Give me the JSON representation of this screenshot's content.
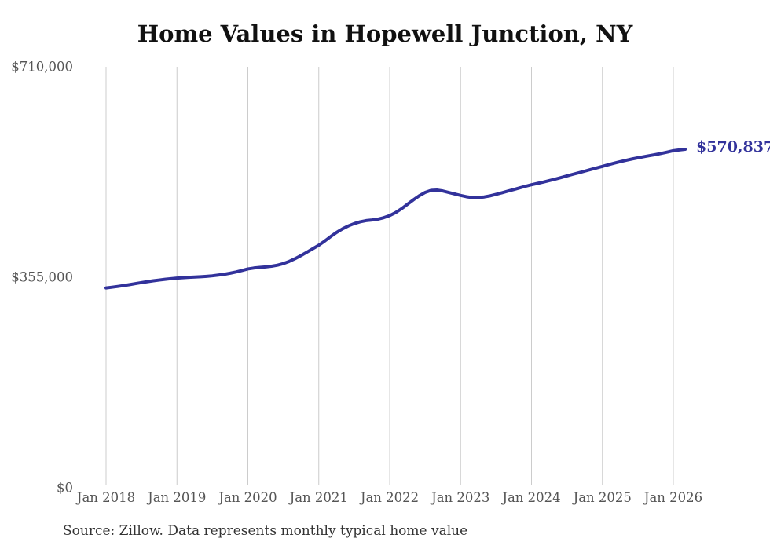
{
  "chart": {
    "title": "Home Values in Hopewell Junction, NY",
    "source_note": "Source: Zillow. Data represents monthly typical home value"
  },
  "colors": {
    "line": "#32329B",
    "end_label": "#32329B",
    "gridline": "#CCCCCC",
    "axis_text": "#555555",
    "title_text": "#111111",
    "source_text": "#333333",
    "background": "#FFFFFF"
  },
  "chart_data": {
    "type": "line",
    "title": "Home Values in Hopewell Junction, NY",
    "series_name": "Monthly typical home value (USD)",
    "frequency": "monthly",
    "start_month": "Jan 2018",
    "end_month": "Mar 2026",
    "x_ticks": [
      "Jan 2018",
      "Jan 2019",
      "Jan 2020",
      "Jan 2021",
      "Jan 2022",
      "Jan 2023",
      "Jan 2024",
      "Jan 2025",
      "Jan 2026"
    ],
    "months_per_tick": 12,
    "y_ticks": [
      {
        "label": "$0",
        "value": 0
      },
      {
        "label": "$355,000",
        "value": 355000
      },
      {
        "label": "$710,000",
        "value": 710000
      }
    ],
    "ylim": [
      0,
      710000
    ],
    "grid": "vertical-only",
    "legend": "none",
    "end_annotation": {
      "label": "$570,837",
      "value": 570837
    },
    "values": [
      337000,
      338200,
      339500,
      341000,
      342600,
      344300,
      346000,
      347600,
      349000,
      350300,
      351500,
      352600,
      353500,
      354200,
      354800,
      355300,
      355800,
      356500,
      357400,
      358600,
      360000,
      361800,
      363900,
      366300,
      369000,
      370500,
      371600,
      372400,
      373500,
      375300,
      378000,
      381700,
      386300,
      391600,
      397300,
      403200,
      409000,
      416000,
      423500,
      430500,
      436500,
      441500,
      445500,
      448500,
      450500,
      451500,
      453000,
      455500,
      459000,
      464000,
      470500,
      478000,
      485500,
      492500,
      498000,
      501500,
      502000,
      500500,
      498000,
      495500,
      493000,
      490800,
      489500,
      489500,
      490500,
      492300,
      494800,
      497500,
      500300,
      503000,
      505800,
      508500,
      511000,
      513300,
      515500,
      518000,
      520500,
      523200,
      526000,
      528700,
      531300,
      534000,
      536700,
      539400,
      542000,
      544800,
      547500,
      550000,
      552300,
      554500,
      556500,
      558400,
      560200,
      562000,
      564000,
      566200,
      568500,
      569800,
      570837
    ]
  }
}
